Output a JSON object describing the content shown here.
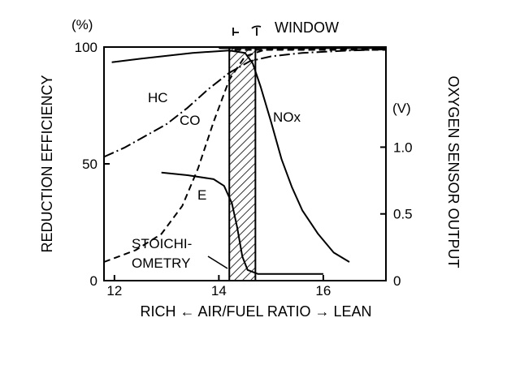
{
  "chart_data": {
    "type": "line",
    "x_axis": {
      "label": "RICH ← AIR/FUEL RATIO → LEAN",
      "range": [
        11.8,
        17.2
      ],
      "ticks": [
        12,
        14,
        16
      ],
      "tick_labels": [
        "12",
        "14",
        "16"
      ]
    },
    "y_axis_left": {
      "label": "REDUCTION EFFICIENCY",
      "unit": "(%)",
      "range": [
        0,
        100
      ],
      "ticks": [
        0,
        50,
        100
      ],
      "tick_labels": [
        "0",
        "50",
        "100"
      ]
    },
    "y_axis_right": {
      "label": "OXYGEN SENSOR OUTPUT",
      "unit": "(V)",
      "range": [
        0,
        1.75
      ],
      "ticks": [
        0,
        0.5,
        1.0
      ],
      "tick_labels": [
        "0",
        "0.5",
        "1.0"
      ]
    },
    "window": {
      "label": "WINDOW",
      "x_range": [
        14.2,
        14.7
      ]
    },
    "annotations": {
      "stoichiometry_line1": "STOICHI-",
      "stoichiometry_line2": "OMETRY"
    },
    "series": [
      {
        "name": "HC",
        "axis": "left",
        "style": "dash-dot",
        "points": [
          [
            11.8,
            53
          ],
          [
            12.2,
            57
          ],
          [
            12.6,
            62
          ],
          [
            13.0,
            67
          ],
          [
            13.4,
            74
          ],
          [
            13.8,
            82
          ],
          [
            14.2,
            89
          ],
          [
            14.6,
            94
          ],
          [
            15.0,
            96
          ],
          [
            15.6,
            97.5
          ],
          [
            16.5,
            98.5
          ],
          [
            17.2,
            99
          ]
        ]
      },
      {
        "name": "CO",
        "axis": "left",
        "style": "dashed",
        "points": [
          [
            11.8,
            8
          ],
          [
            12.4,
            13
          ],
          [
            12.9,
            20
          ],
          [
            13.3,
            32
          ],
          [
            13.6,
            48
          ],
          [
            13.9,
            68
          ],
          [
            14.2,
            86
          ],
          [
            14.5,
            96
          ],
          [
            14.9,
            99
          ],
          [
            17.2,
            99.5
          ]
        ]
      },
      {
        "name": "NOx",
        "axis": "left",
        "style": "solid",
        "points": [
          [
            11.95,
            93.5
          ],
          [
            12.5,
            95
          ],
          [
            13.5,
            97.5
          ],
          [
            14.2,
            98.5
          ],
          [
            14.5,
            97.5
          ],
          [
            14.65,
            93
          ],
          [
            14.8,
            83
          ],
          [
            15.0,
            68
          ],
          [
            15.2,
            52
          ],
          [
            15.4,
            40
          ],
          [
            15.6,
            30
          ],
          [
            15.9,
            20
          ],
          [
            16.2,
            12
          ],
          [
            16.5,
            8
          ]
        ]
      },
      {
        "name": "E",
        "axis": "right",
        "style": "solid",
        "points": [
          [
            12.9,
            0.81
          ],
          [
            13.4,
            0.79
          ],
          [
            13.9,
            0.76
          ],
          [
            14.1,
            0.71
          ],
          [
            14.25,
            0.58
          ],
          [
            14.35,
            0.4
          ],
          [
            14.45,
            0.18
          ],
          [
            14.55,
            0.08
          ],
          [
            14.75,
            0.05
          ],
          [
            15.2,
            0.05
          ],
          [
            16.0,
            0.05
          ]
        ]
      },
      {
        "name": "",
        "axis": "left",
        "style": "solid",
        "points": [
          [
            14.0,
            99.5
          ],
          [
            17.2,
            99.5
          ]
        ]
      },
      {
        "name": "",
        "axis": "left",
        "style": "dashed",
        "points": [
          [
            14.3,
            98.8
          ],
          [
            17.2,
            98.8
          ]
        ]
      }
    ]
  }
}
